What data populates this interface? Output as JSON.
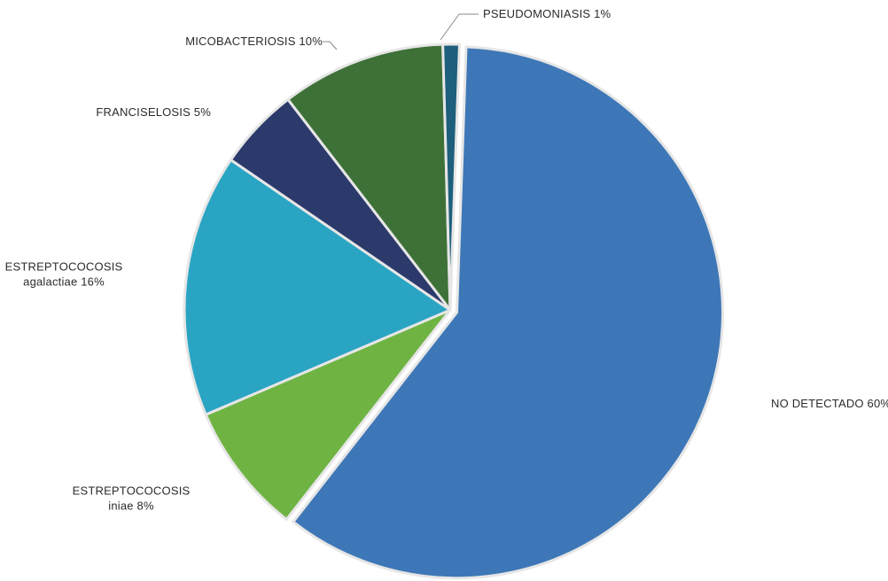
{
  "chart_data": {
    "type": "pie",
    "title": "",
    "slices": [
      {
        "lines": [
          "NO DETECTADO 60%"
        ],
        "value": 60,
        "color": "#3d77b7"
      },
      {
        "lines": [
          "ESTREPTOCOCOSIS",
          "iniae 8%"
        ],
        "value": 8,
        "color": "#6fb443"
      },
      {
        "lines": [
          "ESTREPTOCOCOSIS",
          "agalactiae 16%"
        ],
        "value": 16,
        "color": "#2aa4c3"
      },
      {
        "lines": [
          "FRANCISELOSIS 5%"
        ],
        "value": 5,
        "color": "#2b3a6a"
      },
      {
        "lines": [
          "MICOBACTERIOSIS 10%"
        ],
        "value": 10,
        "color": "#3e7138"
      },
      {
        "lines": [
          "PSEUDOMONIASIS 1%"
        ],
        "value": 1,
        "color": "#1d5f7c"
      }
    ]
  }
}
